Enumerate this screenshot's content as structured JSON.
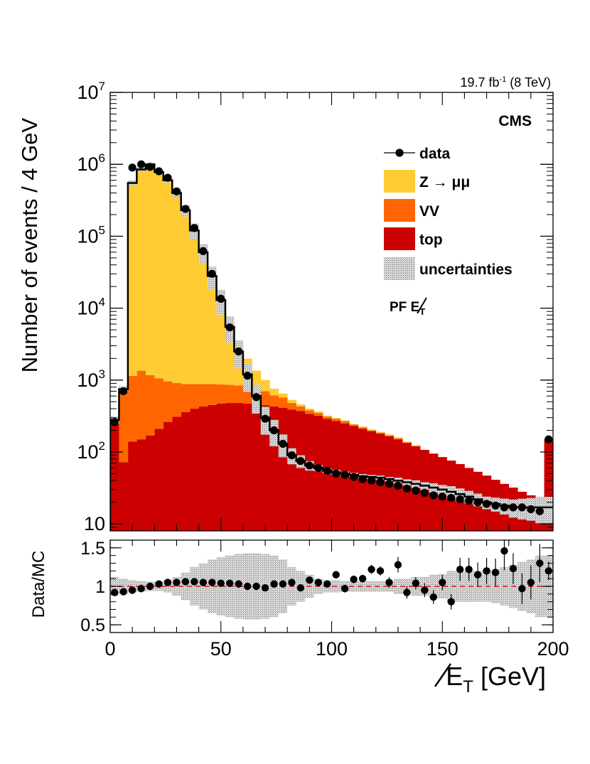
{
  "chart_data": [
    {
      "type": "bar",
      "subtype": "stacked-histogram-log",
      "lumi": "19.7 fb",
      "lumi_exp": "-1",
      "energy": "(8 TeV)",
      "experiment": "CMS",
      "tag_prefix": "PF",
      "tag_var": "E",
      "tag_sub": "T",
      "ylabel": "Number of events / 4 GeV",
      "yscale": "log",
      "ylim": [
        8,
        10000000
      ],
      "yticks": [
        {
          "value": 10,
          "base": "10",
          "exp": ""
        },
        {
          "value": 100,
          "base": "10",
          "exp": "2"
        },
        {
          "value": 1000,
          "base": "10",
          "exp": "3"
        },
        {
          "value": 10000,
          "base": "10",
          "exp": "4"
        },
        {
          "value": 100000,
          "base": "10",
          "exp": "5"
        },
        {
          "value": 1000000,
          "base": "10",
          "exp": "6"
        },
        {
          "value": 10000000,
          "base": "10",
          "exp": "7"
        }
      ],
      "xlim": [
        0,
        200
      ],
      "bin_width": 4,
      "bin_centers": [
        2,
        6,
        10,
        14,
        18,
        22,
        26,
        30,
        34,
        38,
        42,
        46,
        50,
        54,
        58,
        62,
        66,
        70,
        74,
        78,
        82,
        86,
        90,
        94,
        98,
        102,
        106,
        110,
        114,
        118,
        122,
        126,
        130,
        134,
        138,
        142,
        146,
        150,
        154,
        158,
        162,
        166,
        170,
        174,
        178,
        182,
        186,
        190,
        194,
        198
      ],
      "legend": [
        {
          "label": "data",
          "style": "marker",
          "color": "#000000"
        },
        {
          "label": "Z → μμ",
          "style": "fill",
          "color": "#ffcc33"
        },
        {
          "label": "VV",
          "style": "fill",
          "color": "#ff6600"
        },
        {
          "label": "top",
          "style": "fill",
          "color": "#cc0000"
        },
        {
          "label": "uncertainties",
          "style": "hatch",
          "color": "#b3b3b3"
        }
      ],
      "series": [
        {
          "name": "top",
          "color": "#cc0000",
          "values": [
            260,
            72,
            140,
            150,
            170,
            210,
            260,
            310,
            360,
            400,
            430,
            450,
            470,
            480,
            480,
            470,
            460,
            450,
            430,
            410,
            390,
            370,
            340,
            320,
            290,
            270,
            250,
            230,
            210,
            195,
            180,
            165,
            150,
            135,
            120,
            107,
            95,
            85,
            76,
            68,
            60,
            53,
            47,
            41,
            36,
            32,
            28,
            25,
            22,
            150
          ]
        },
        {
          "name": "VV",
          "color": "#ff6600",
          "values": [
            20,
            680,
            1000,
            1200,
            1000,
            850,
            700,
            600,
            520,
            480,
            450,
            430,
            400,
            380,
            360,
            320,
            290,
            250,
            180,
            160,
            90,
            60,
            40,
            30,
            20,
            20,
            20,
            10,
            10,
            5,
            5,
            5,
            5,
            0,
            0,
            0,
            0,
            0,
            0,
            0,
            0,
            0,
            0,
            0,
            0,
            0,
            0,
            0,
            0,
            0
          ]
        },
        {
          "name": "Z → μμ",
          "color": "#ffcc33",
          "values": [
            0,
            0,
            550000,
            850000,
            900000,
            780000,
            600000,
            400000,
            230000,
            120000,
            60000,
            28000,
            13000,
            5500,
            2500,
            1200,
            600,
            300,
            150,
            80,
            50,
            30,
            20,
            15,
            10,
            8,
            5,
            5,
            5,
            5,
            5,
            5,
            5,
            5,
            5,
            0,
            0,
            0,
            0,
            0,
            0,
            0,
            0,
            0,
            0,
            0,
            0,
            0,
            0,
            0
          ]
        }
      ],
      "mc_total": [
        280,
        750,
        550000,
        850000,
        1000000,
        780000,
        600000,
        400000,
        230000,
        120000,
        60000,
        28000,
        13000,
        5500,
        2500,
        1200,
        600,
        300,
        200,
        130,
        90,
        75,
        65,
        60,
        55,
        52,
        50,
        48,
        46,
        45,
        44,
        42,
        40,
        38,
        36,
        34,
        32,
        30,
        28,
        26,
        24,
        22,
        20,
        19,
        18,
        17,
        17,
        17,
        17,
        17
      ],
      "data": [
        260,
        700,
        900000,
        1000000,
        920000,
        800000,
        650000,
        420000,
        240000,
        130000,
        62000,
        30000,
        13500,
        5400,
        2500,
        1150,
        580,
        290,
        200,
        130,
        90,
        75,
        65,
        60,
        55,
        50,
        48,
        45,
        42,
        40,
        38,
        36,
        34,
        31,
        29,
        27,
        25,
        24,
        23,
        22,
        21,
        20,
        19,
        18,
        17,
        17,
        17,
        16,
        15,
        150
      ]
    },
    {
      "type": "scatter",
      "subtype": "ratio-panel",
      "ylabel": "Data/MC",
      "xlabel_var": "E",
      "xlabel_sub": "T",
      "xlabel_unit": "[GeV]",
      "xlim": [
        0,
        200
      ],
      "ylim": [
        0.4,
        1.6
      ],
      "yticks": [
        0.5,
        1,
        1.5
      ],
      "ytick_labels": [
        "0.5",
        "1",
        "1.5"
      ],
      "xticks": [
        0,
        50,
        100,
        150,
        200
      ],
      "xtick_labels": [
        "0",
        "50",
        "100",
        "150",
        "200"
      ],
      "reference_line": 1,
      "ratio_x": [
        2,
        6,
        10,
        14,
        18,
        22,
        26,
        30,
        34,
        38,
        42,
        46,
        50,
        54,
        58,
        62,
        66,
        70,
        74,
        78,
        82,
        86,
        90,
        94,
        98,
        102,
        106,
        110,
        114,
        118,
        122,
        126,
        130,
        134,
        138,
        142,
        146,
        150,
        154,
        158,
        162,
        166,
        170,
        174,
        178,
        182,
        186,
        190,
        194,
        198
      ],
      "ratio": [
        0.92,
        0.93,
        0.95,
        0.97,
        1.0,
        1.03,
        1.05,
        1.05,
        1.06,
        1.06,
        1.05,
        1.05,
        1.04,
        1.04,
        1.03,
        1.0,
        1.0,
        0.98,
        1.03,
        1.03,
        1.05,
        0.98,
        1.08,
        1.05,
        1.03,
        1.15,
        0.97,
        1.09,
        1.1,
        1.22,
        1.2,
        1.05,
        1.28,
        0.92,
        1.04,
        0.95,
        0.86,
        1.05,
        0.8,
        1.22,
        1.22,
        1.15,
        1.2,
        1.18,
        1.46,
        1.23,
        0.97,
        1.05,
        1.3,
        1.2
      ],
      "ratio_err": [
        0.01,
        0.01,
        0.01,
        0.01,
        0.01,
        0.01,
        0.01,
        0.01,
        0.01,
        0.01,
        0.01,
        0.01,
        0.01,
        0.01,
        0.02,
        0.02,
        0.02,
        0.02,
        0.02,
        0.02,
        0.03,
        0.03,
        0.03,
        0.03,
        0.04,
        0.04,
        0.05,
        0.05,
        0.05,
        0.06,
        0.06,
        0.07,
        0.1,
        0.08,
        0.08,
        0.09,
        0.09,
        0.1,
        0.1,
        0.15,
        0.15,
        0.16,
        0.17,
        0.18,
        0.25,
        0.2,
        0.2,
        0.22,
        0.25,
        0.12
      ],
      "band_half_width": [
        0.12,
        0.1,
        0.08,
        0.07,
        0.06,
        0.06,
        0.08,
        0.12,
        0.18,
        0.25,
        0.3,
        0.35,
        0.38,
        0.4,
        0.42,
        0.43,
        0.43,
        0.42,
        0.4,
        0.35,
        0.25,
        0.2,
        0.15,
        0.1,
        0.08,
        0.08,
        0.07,
        0.07,
        0.07,
        0.07,
        0.07,
        0.07,
        0.1,
        0.1,
        0.12,
        0.12,
        0.15,
        0.16,
        0.2,
        0.2,
        0.2,
        0.2,
        0.2,
        0.22,
        0.25,
        0.28,
        0.32,
        0.35,
        0.4,
        0.4
      ]
    }
  ]
}
